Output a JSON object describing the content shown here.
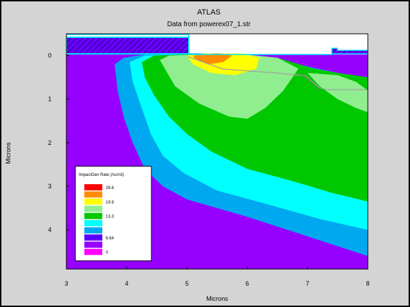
{
  "chart_data": {
    "type": "heatmap",
    "title": "ATLAS",
    "subtitle": "Data from powerex07_1.str",
    "xlabel": "Microns",
    "ylabel": "Microns",
    "xlim": [
      3,
      8
    ],
    "ylim": [
      4.9,
      -0.5
    ],
    "x_ticks": [
      3,
      4,
      5,
      6,
      7,
      8
    ],
    "y_ticks": [
      0,
      1,
      2,
      3,
      4
    ],
    "legend": {
      "title": "ImpactGen Rate (/scm3)",
      "placement": "bottom-left",
      "levels": [
        {
          "color": "#ff0000",
          "label": "26.6"
        },
        {
          "color": "#ff8c00",
          "label": ""
        },
        {
          "color": "#ffff00",
          "label": "19.9"
        },
        {
          "color": "#90ee90",
          "label": ""
        },
        {
          "color": "#00c800",
          "label": "13.3"
        },
        {
          "color": "#00ffff",
          "label": ""
        },
        {
          "color": "#00a8f0",
          "label": ""
        },
        {
          "color": "#5a00ff",
          "label": "6.64"
        },
        {
          "color": "#9600ff",
          "label": ""
        },
        {
          "color": "#ff00ff",
          "label": "0"
        }
      ]
    },
    "contour_bands": [
      {
        "color": "#00a8f0",
        "points": [
          [
            3.8,
            0.2
          ],
          [
            3.95,
            0.05
          ],
          [
            4.4,
            -0.05
          ],
          [
            5.6,
            -0.05
          ],
          [
            6.4,
            0.05
          ],
          [
            7.0,
            0.25
          ],
          [
            7.5,
            0.4
          ],
          [
            8.0,
            0.5
          ],
          [
            8.0,
            4.6
          ],
          [
            7.0,
            4.15
          ],
          [
            6.0,
            3.7
          ],
          [
            5.0,
            3.3
          ],
          [
            4.6,
            3.0
          ],
          [
            4.3,
            2.6
          ],
          [
            4.1,
            2.0
          ],
          [
            3.95,
            1.4
          ],
          [
            3.85,
            0.8
          ]
        ]
      },
      {
        "color": "#00ffff",
        "points": [
          [
            4.05,
            0.15
          ],
          [
            4.3,
            0.0
          ],
          [
            5.6,
            -0.05
          ],
          [
            6.5,
            0.05
          ],
          [
            7.1,
            0.3
          ],
          [
            7.5,
            0.4
          ],
          [
            8.0,
            0.5
          ],
          [
            8.0,
            4.0
          ],
          [
            7.2,
            3.75
          ],
          [
            6.3,
            3.4
          ],
          [
            5.5,
            3.1
          ],
          [
            4.95,
            2.7
          ],
          [
            4.6,
            2.3
          ],
          [
            4.4,
            1.8
          ],
          [
            4.25,
            1.2
          ],
          [
            4.1,
            0.6
          ]
        ]
      },
      {
        "color": "#00c800",
        "points": [
          [
            4.25,
            0.15
          ],
          [
            4.45,
            0.0
          ],
          [
            5.6,
            -0.05
          ],
          [
            6.5,
            0.05
          ],
          [
            7.1,
            0.3
          ],
          [
            7.5,
            0.4
          ],
          [
            8.0,
            0.5
          ],
          [
            8.0,
            3.35
          ],
          [
            7.4,
            3.15
          ],
          [
            6.8,
            2.9
          ],
          [
            6.0,
            2.6
          ],
          [
            5.4,
            2.2
          ],
          [
            5.0,
            1.8
          ],
          [
            4.7,
            1.4
          ],
          [
            4.45,
            0.9
          ],
          [
            4.3,
            0.5
          ]
        ]
      },
      {
        "color": "#90ee90",
        "points": [
          [
            4.55,
            0.1
          ],
          [
            4.7,
            0.0
          ],
          [
            5.8,
            -0.05
          ],
          [
            6.5,
            0.05
          ],
          [
            6.85,
            0.3
          ],
          [
            6.6,
            0.8
          ],
          [
            6.3,
            1.2
          ],
          [
            6.0,
            1.45
          ],
          [
            5.7,
            1.4
          ],
          [
            5.2,
            1.1
          ],
          [
            4.8,
            0.7
          ]
        ]
      },
      {
        "color": "#90ee90",
        "points": [
          [
            7.0,
            0.4
          ],
          [
            7.5,
            0.45
          ],
          [
            7.8,
            0.6
          ],
          [
            8.0,
            0.8
          ],
          [
            8.0,
            1.3
          ],
          [
            7.8,
            1.2
          ],
          [
            7.5,
            1.0
          ],
          [
            7.2,
            0.7
          ]
        ]
      },
      {
        "color": "#ffff00",
        "points": [
          [
            5.0,
            0.0
          ],
          [
            5.3,
            -0.05
          ],
          [
            5.9,
            -0.05
          ],
          [
            6.2,
            0.05
          ],
          [
            6.15,
            0.3
          ],
          [
            5.8,
            0.45
          ],
          [
            5.4,
            0.4
          ],
          [
            5.1,
            0.2
          ]
        ]
      },
      {
        "color": "#ff8c00",
        "points": [
          [
            5.1,
            0.0
          ],
          [
            5.5,
            -0.05
          ],
          [
            5.75,
            0.0
          ],
          [
            5.6,
            0.15
          ],
          [
            5.35,
            0.2
          ],
          [
            5.15,
            0.1
          ]
        ]
      }
    ]
  }
}
